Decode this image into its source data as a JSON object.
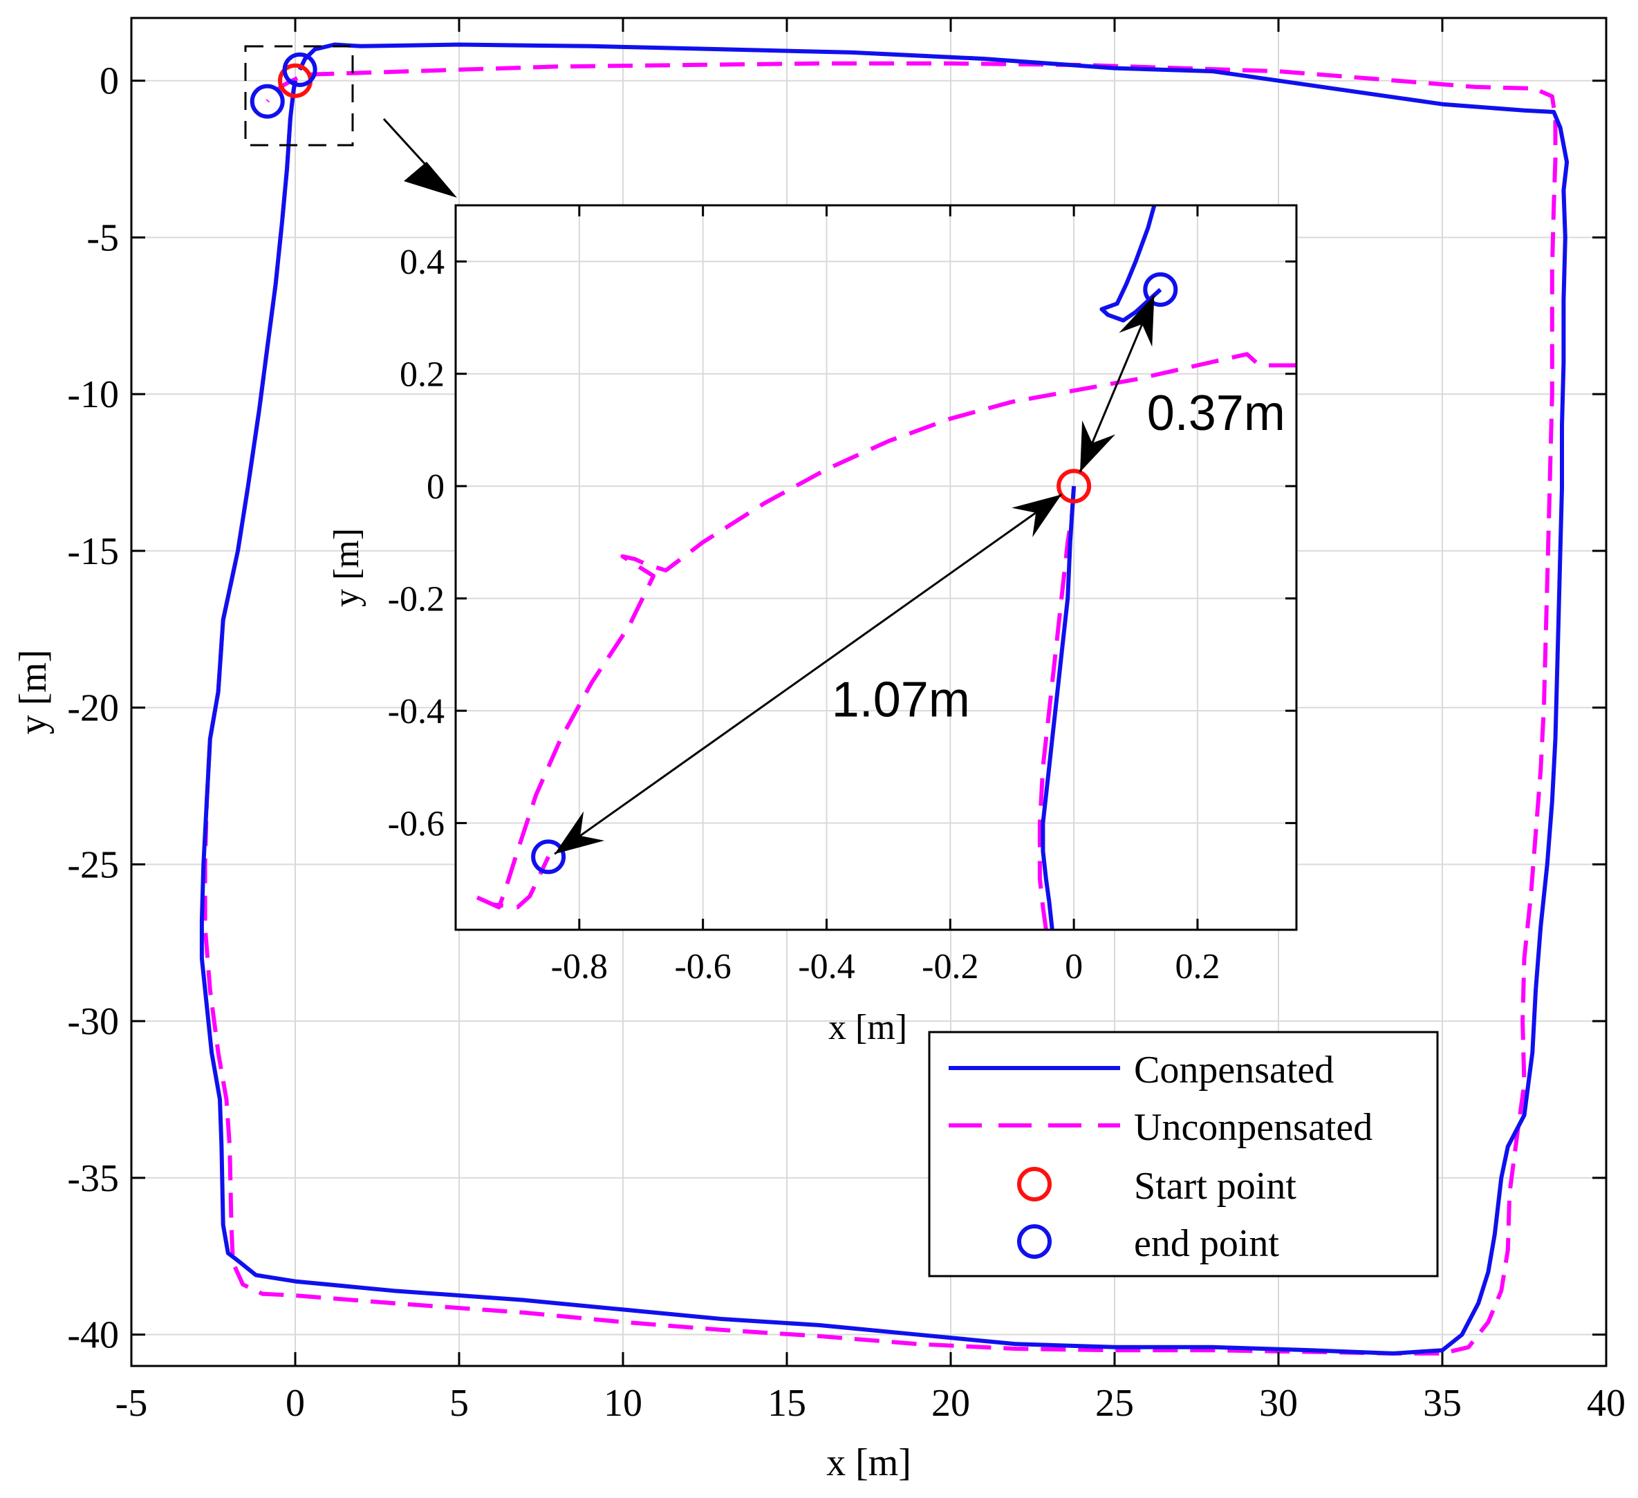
{
  "chart_data": [
    {
      "type": "line",
      "role": "main",
      "xlabel": "x [m]",
      "ylabel": "y [m]",
      "xlim": [
        -5,
        40
      ],
      "ylim": [
        -41,
        2
      ],
      "xticks": [
        -5,
        0,
        5,
        10,
        15,
        20,
        25,
        30,
        35,
        40
      ],
      "yticks": [
        0,
        -5,
        -10,
        -15,
        -20,
        -25,
        -30,
        -35,
        -40
      ],
      "grid": true,
      "legend_position": "lower-right",
      "series": [
        {
          "name": "Conpensated",
          "color": "#1010ee",
          "style": "solid",
          "points": [
            [
              0,
              0
            ],
            [
              -0.05,
              -0.3
            ],
            [
              -0.15,
              -1.2
            ],
            [
              -0.25,
              -2.8
            ],
            [
              -0.4,
              -4.5
            ],
            [
              -0.6,
              -6.5
            ],
            [
              -0.85,
              -8.5
            ],
            [
              -1.1,
              -10.5
            ],
            [
              -1.45,
              -13.0
            ],
            [
              -1.75,
              -15.0
            ],
            [
              -2.2,
              -17.2
            ],
            [
              -2.35,
              -19.5
            ],
            [
              -2.6,
              -21.0
            ],
            [
              -2.7,
              -23.0
            ],
            [
              -2.8,
              -25.0
            ],
            [
              -2.85,
              -26.8
            ],
            [
              -2.85,
              -28.0
            ],
            [
              -2.7,
              -29.5
            ],
            [
              -2.55,
              -31.0
            ],
            [
              -2.3,
              -32.5
            ],
            [
              -2.25,
              -34.0
            ],
            [
              -2.2,
              -36.5
            ],
            [
              -2.05,
              -37.4
            ],
            [
              -1.8,
              -37.6
            ],
            [
              -1.2,
              -38.1
            ],
            [
              0,
              -38.3
            ],
            [
              3,
              -38.6
            ],
            [
              7,
              -38.9
            ],
            [
              10,
              -39.2
            ],
            [
              13,
              -39.5
            ],
            [
              16,
              -39.7
            ],
            [
              19,
              -40.0
            ],
            [
              22,
              -40.3
            ],
            [
              25,
              -40.4
            ],
            [
              28,
              -40.4
            ],
            [
              31,
              -40.5
            ],
            [
              33.5,
              -40.6
            ],
            [
              35,
              -40.5
            ],
            [
              35.6,
              -40.0
            ],
            [
              36.1,
              -39.0
            ],
            [
              36.4,
              -38.0
            ],
            [
              36.6,
              -36.8
            ],
            [
              36.8,
              -35.0
            ],
            [
              37.0,
              -34.0
            ],
            [
              37.5,
              -33.0
            ],
            [
              37.75,
              -31.0
            ],
            [
              37.85,
              -29.0
            ],
            [
              38.0,
              -27.0
            ],
            [
              38.2,
              -25.0
            ],
            [
              38.35,
              -23.0
            ],
            [
              38.45,
              -21.0
            ],
            [
              38.5,
              -19.0
            ],
            [
              38.55,
              -17.0
            ],
            [
              38.6,
              -15.0
            ],
            [
              38.65,
              -13.0
            ],
            [
              38.65,
              -11.0
            ],
            [
              38.7,
              -9.0
            ],
            [
              38.7,
              -7.0
            ],
            [
              38.75,
              -5.0
            ],
            [
              38.7,
              -3.5
            ],
            [
              38.8,
              -2.6
            ],
            [
              38.6,
              -1.5
            ],
            [
              38.4,
              -1.0
            ],
            [
              37.5,
              -0.95
            ],
            [
              35,
              -0.75
            ],
            [
              32,
              -0.3
            ],
            [
              28,
              0.3
            ],
            [
              25,
              0.4
            ],
            [
              21,
              0.7
            ],
            [
              17,
              0.9
            ],
            [
              13,
              1.0
            ],
            [
              9,
              1.1
            ],
            [
              5,
              1.15
            ],
            [
              2,
              1.1
            ],
            [
              1.2,
              1.15
            ],
            [
              0.6,
              1.0
            ],
            [
              0.3,
              0.7
            ],
            [
              0.14,
              0.35
            ]
          ]
        },
        {
          "name": "Unconpensated",
          "color": "#ff00ff",
          "style": "dashed",
          "points": [
            [
              0,
              0
            ],
            [
              -0.05,
              -0.3
            ],
            [
              -0.15,
              -1.2
            ],
            [
              -0.25,
              -2.8
            ],
            [
              -0.4,
              -4.5
            ],
            [
              -0.6,
              -6.5
            ],
            [
              -0.85,
              -8.5
            ],
            [
              -1.1,
              -10.5
            ],
            [
              -1.45,
              -13.0
            ],
            [
              -1.75,
              -15.0
            ],
            [
              -2.2,
              -17.2
            ],
            [
              -2.35,
              -19.5
            ],
            [
              -2.6,
              -21.0
            ],
            [
              -2.7,
              -23.0
            ],
            [
              -2.75,
              -25.0
            ],
            [
              -2.75,
              -27.0
            ],
            [
              -2.6,
              -29.0
            ],
            [
              -2.35,
              -31.0
            ],
            [
              -2.1,
              -32.5
            ],
            [
              -2.0,
              -34.0
            ],
            [
              -1.95,
              -36.5
            ],
            [
              -1.9,
              -37.7
            ],
            [
              -1.6,
              -38.4
            ],
            [
              -1.0,
              -38.7
            ],
            [
              0,
              -38.75
            ],
            [
              3,
              -39.0
            ],
            [
              7,
              -39.3
            ],
            [
              10,
              -39.6
            ],
            [
              13,
              -39.85
            ],
            [
              16,
              -40.05
            ],
            [
              19,
              -40.3
            ],
            [
              22,
              -40.45
            ],
            [
              25,
              -40.5
            ],
            [
              28,
              -40.5
            ],
            [
              31,
              -40.55
            ],
            [
              33.5,
              -40.6
            ],
            [
              35,
              -40.6
            ],
            [
              35.8,
              -40.4
            ],
            [
              36.4,
              -39.6
            ],
            [
              36.8,
              -38.6
            ],
            [
              37.0,
              -37.3
            ],
            [
              37.05,
              -35.5
            ],
            [
              37.3,
              -33.5
            ],
            [
              37.5,
              -32.0
            ],
            [
              37.45,
              -30.0
            ],
            [
              37.5,
              -28.0
            ],
            [
              37.7,
              -26.0
            ],
            [
              37.85,
              -24.0
            ],
            [
              38.0,
              -22.0
            ],
            [
              38.1,
              -20.0
            ],
            [
              38.15,
              -18.0
            ],
            [
              38.2,
              -16.0
            ],
            [
              38.25,
              -14.0
            ],
            [
              38.3,
              -12.0
            ],
            [
              38.35,
              -10.0
            ],
            [
              38.35,
              -8.0
            ],
            [
              38.35,
              -6.0
            ],
            [
              38.4,
              -4.0
            ],
            [
              38.45,
              -2.5
            ],
            [
              38.45,
              -1.2
            ],
            [
              38.35,
              -0.5
            ],
            [
              37.8,
              -0.25
            ],
            [
              36,
              -0.2
            ],
            [
              33,
              0.05
            ],
            [
              30,
              0.3
            ],
            [
              27,
              0.4
            ],
            [
              24,
              0.5
            ],
            [
              20,
              0.55
            ],
            [
              16,
              0.55
            ],
            [
              12,
              0.5
            ],
            [
              8,
              0.45
            ],
            [
              5,
              0.35
            ],
            [
              2,
              0.25
            ],
            [
              0.5,
              0.2
            ],
            [
              0.1,
              0.1
            ],
            [
              -0.2,
              -0.05
            ],
            [
              -0.45,
              -0.2
            ],
            [
              -0.7,
              -0.45
            ],
            [
              -0.85,
              -0.66
            ]
          ]
        },
        {
          "name": "Start point",
          "color": "#ff1010",
          "style": "circle-marker",
          "points": [
            [
              0,
              0
            ]
          ]
        },
        {
          "name": "end point",
          "color": "#1010ee",
          "style": "circle-marker",
          "points": [
            [
              0.14,
              0.35
            ],
            [
              -0.85,
              -0.66
            ]
          ]
        }
      ],
      "annotations": []
    },
    {
      "type": "line",
      "role": "inset",
      "xlabel": "x [m]",
      "ylabel": "y [m]",
      "xlim": [
        -1.0,
        0.36
      ],
      "ylim": [
        -0.79,
        0.5
      ],
      "xticks": [
        -0.8,
        -0.6,
        -0.4,
        -0.2,
        0,
        0.2
      ],
      "yticks": [
        0.4,
        0.2,
        0,
        -0.2,
        -0.4,
        -0.6
      ],
      "xtick_labels": [
        "-0.8",
        "-0.6",
        "-0.4",
        "-0.2",
        "0",
        "0.2"
      ],
      "ytick_labels": [
        "0.4",
        "0.2",
        "0",
        "-0.2",
        "-0.4",
        "-0.6"
      ],
      "grid": true,
      "series": [
        {
          "name": "Conpensated",
          "color": "#1010ee",
          "style": "solid",
          "points_a": [
            [
              -0.035,
              -0.79
            ],
            [
              -0.04,
              -0.74
            ],
            [
              -0.045,
              -0.7
            ],
            [
              -0.05,
              -0.65
            ],
            [
              -0.05,
              -0.6
            ],
            [
              -0.045,
              -0.55
            ],
            [
              -0.04,
              -0.5
            ],
            [
              -0.035,
              -0.45
            ],
            [
              -0.03,
              -0.4
            ],
            [
              -0.025,
              -0.35
            ],
            [
              -0.02,
              -0.3
            ],
            [
              -0.015,
              -0.25
            ],
            [
              -0.01,
              -0.2
            ],
            [
              -0.006,
              -0.1
            ],
            [
              -0.003,
              -0.05
            ],
            [
              0,
              0
            ]
          ],
          "points_b": [
            [
              0.13,
              0.5
            ],
            [
              0.12,
              0.46
            ],
            [
              0.1,
              0.4
            ],
            [
              0.085,
              0.36
            ],
            [
              0.07,
              0.325
            ],
            [
              0.045,
              0.315
            ],
            [
              0.055,
              0.305
            ],
            [
              0.08,
              0.295
            ],
            [
              0.1,
              0.31
            ],
            [
              0.14,
              0.35
            ]
          ]
        },
        {
          "name": "Unconpensated",
          "color": "#ff00ff",
          "style": "dashed",
          "points_a": [
            [
              -0.045,
              -0.79
            ],
            [
              -0.05,
              -0.75
            ],
            [
              -0.055,
              -0.7
            ],
            [
              -0.055,
              -0.6
            ],
            [
              -0.05,
              -0.5
            ],
            [
              -0.04,
              -0.4
            ],
            [
              -0.03,
              -0.3
            ],
            [
              -0.02,
              -0.2
            ],
            [
              -0.01,
              -0.1
            ],
            [
              -0.003,
              -0.05
            ],
            [
              0,
              0
            ]
          ],
          "points_b": [
            [
              0.36,
              0.215
            ],
            [
              0.3,
              0.215
            ],
            [
              0.28,
              0.235
            ],
            [
              0.26,
              0.23
            ],
            [
              0.2,
              0.215
            ],
            [
              0.1,
              0.19
            ],
            [
              0.0,
              0.17
            ],
            [
              -0.1,
              0.15
            ],
            [
              -0.2,
              0.12
            ],
            [
              -0.3,
              0.08
            ],
            [
              -0.4,
              0.03
            ],
            [
              -0.5,
              -0.03
            ],
            [
              -0.6,
              -0.1
            ],
            [
              -0.66,
              -0.15
            ],
            [
              -0.69,
              -0.14
            ],
            [
              -0.71,
              -0.13
            ],
            [
              -0.73,
              -0.125
            ],
            [
              -0.68,
              -0.16
            ],
            [
              -0.72,
              -0.25
            ],
            [
              -0.78,
              -0.35
            ],
            [
              -0.83,
              -0.45
            ],
            [
              -0.87,
              -0.55
            ],
            [
              -0.9,
              -0.65
            ],
            [
              -0.92,
              -0.72
            ],
            [
              -0.93,
              -0.75
            ],
            [
              -0.97,
              -0.73
            ],
            [
              -0.94,
              -0.745
            ],
            [
              -0.9,
              -0.75
            ],
            [
              -0.88,
              -0.73
            ],
            [
              -0.85,
              -0.66
            ]
          ]
        },
        {
          "name": "Start point",
          "color": "#ff1010",
          "style": "circle-marker",
          "points": [
            [
              0,
              0
            ]
          ]
        },
        {
          "name": "end point",
          "color": "#1010ee",
          "style": "circle-marker",
          "points": [
            [
              0.14,
              0.35
            ],
            [
              -0.85,
              -0.66
            ]
          ]
        }
      ],
      "annotations": [
        {
          "text": "0.37m",
          "from": [
            0.01,
            0.025
          ],
          "to": [
            0.13,
            0.34
          ],
          "label_at": [
            0.23,
            0.1
          ]
        },
        {
          "text": "1.07m",
          "from": [
            -0.02,
            -0.015
          ],
          "to": [
            -0.84,
            -0.655
          ],
          "label_at": [
            -0.28,
            -0.41
          ]
        }
      ]
    }
  ],
  "legend": {
    "items": [
      {
        "label": "Conpensated",
        "color": "#1010ee",
        "kind": "solid-line"
      },
      {
        "label": "Unconpensated",
        "color": "#ff00ff",
        "kind": "dashed-line"
      },
      {
        "label": "Start point",
        "color": "#ff1010",
        "kind": "circle"
      },
      {
        "label": "end point",
        "color": "#1010ee",
        "kind": "circle"
      }
    ]
  }
}
